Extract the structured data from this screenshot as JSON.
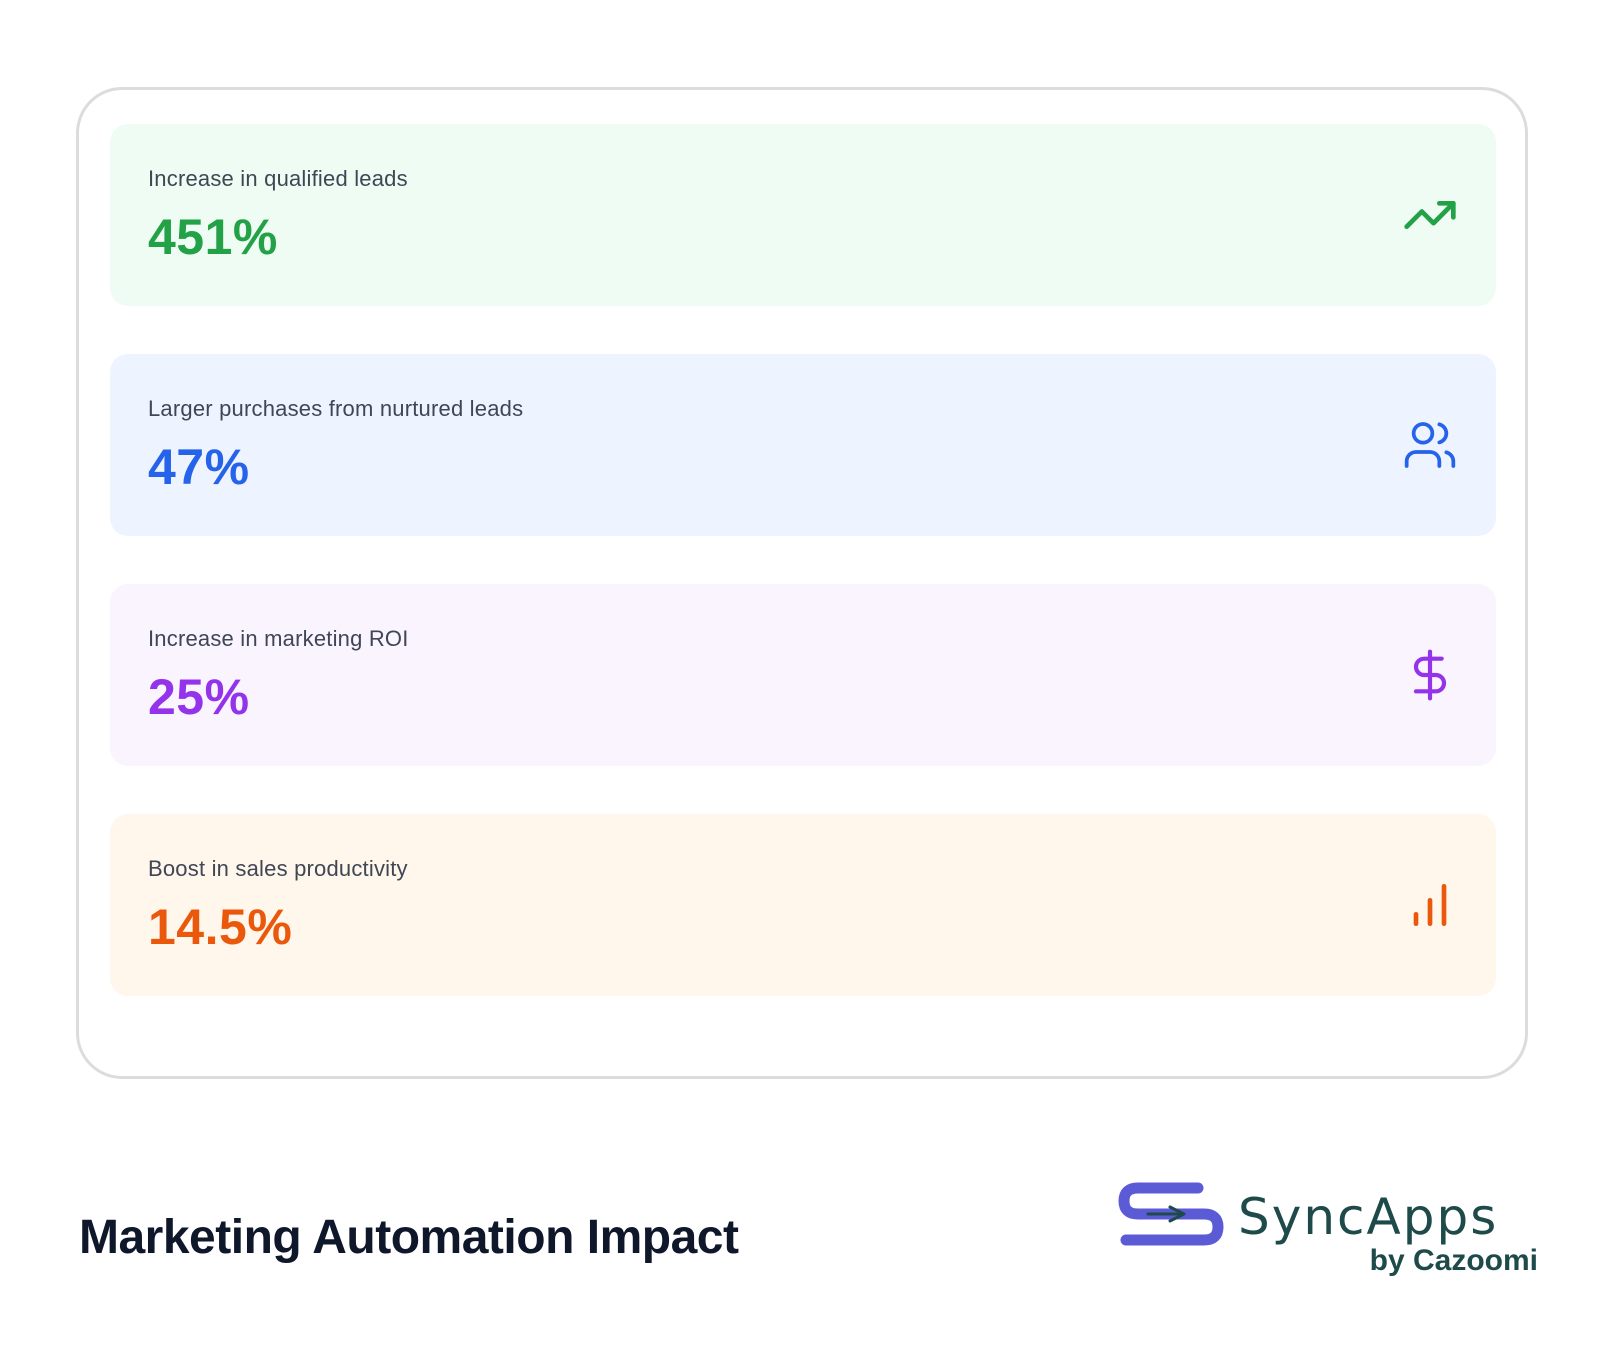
{
  "colors": {
    "green": "#22a146",
    "blue": "#2563eb",
    "purple": "#9333ea",
    "orange": "#ea580c",
    "green_bg": "#effcf3",
    "blue_bg": "#eef4ff",
    "purple_bg": "#faf4ff",
    "orange_bg": "#fff6ec",
    "logo_purple": "#5b5bd6",
    "logo_teal": "#1f4a4a"
  },
  "stats": [
    {
      "label": "Increase in qualified leads",
      "value": "451%",
      "icon": "trending-up-icon"
    },
    {
      "label": "Larger purchases from nurtured leads",
      "value": "47%",
      "icon": "users-icon"
    },
    {
      "label": "Increase in marketing ROI",
      "value": "25%",
      "icon": "dollar-icon"
    },
    {
      "label": "Boost in sales productivity",
      "value": "14.5%",
      "icon": "bar-chart-icon"
    }
  ],
  "caption": "Marketing Automation Impact",
  "logo": {
    "name": "SyncApps",
    "sub": "by Cazoomi"
  }
}
